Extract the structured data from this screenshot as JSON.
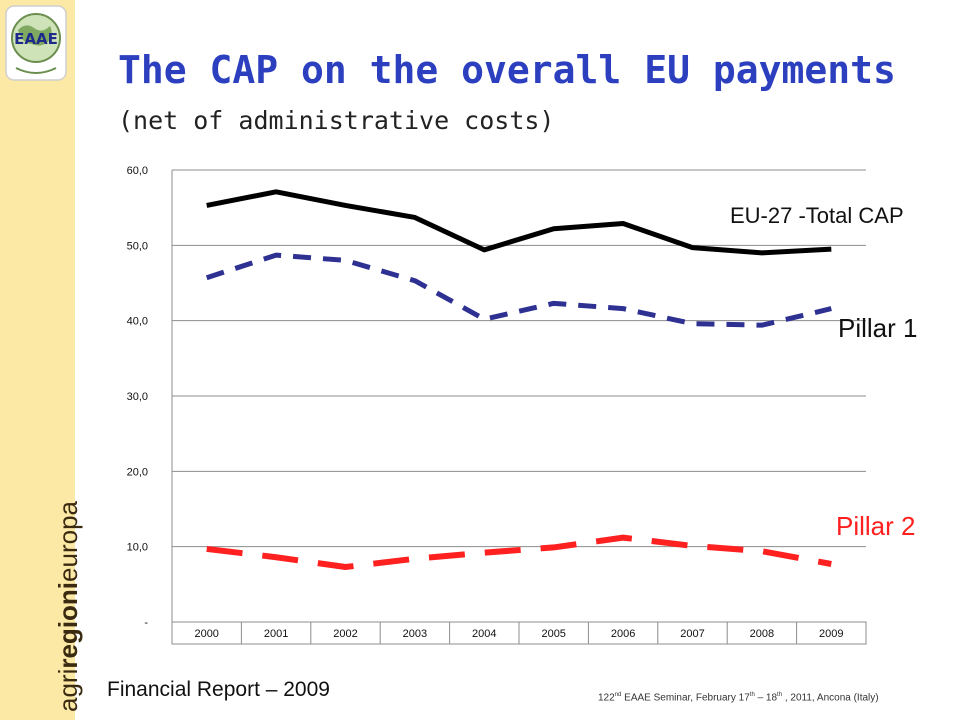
{
  "logo": {
    "text": "EAAE"
  },
  "sidebar": {
    "brand_prefix": "agri",
    "brand_bold": "regioni",
    "brand_suffix": "europa"
  },
  "header": {
    "title": "The CAP on the overall EU payments",
    "subtitle": "(net of administrative costs)"
  },
  "chart_data": {
    "type": "line",
    "categories": [
      "2000",
      "2001",
      "2002",
      "2003",
      "2004",
      "2005",
      "2006",
      "2007",
      "2008",
      "2009"
    ],
    "ylim": [
      0,
      60
    ],
    "yticks": [
      0,
      10,
      20,
      30,
      40,
      50,
      60
    ],
    "ytick_labels": [
      "-",
      "10,0",
      "20,0",
      "30,0",
      "40,0",
      "50,0",
      "60,0"
    ],
    "grid": true,
    "series": [
      {
        "name": "EU-27 -Total CAP",
        "values": [
          55.3,
          57.1,
          55.3,
          53.7,
          49.4,
          52.2,
          52.9,
          49.7,
          49.0,
          49.5
        ],
        "color": "#000000",
        "style": "solid"
      },
      {
        "name": "Pillar 1",
        "values": [
          45.7,
          48.7,
          48.0,
          45.3,
          40.2,
          42.3,
          41.6,
          39.6,
          39.4,
          41.6
        ],
        "color": "#2e3192",
        "style": "dashed"
      },
      {
        "name": "Pillar 2",
        "values": [
          9.7,
          8.6,
          7.3,
          8.4,
          9.2,
          9.9,
          11.2,
          10.1,
          9.4,
          7.7
        ],
        "color": "#ff2020",
        "style": "dashed"
      }
    ]
  },
  "source": "Financial Report – 2009",
  "footer": {
    "a": "122",
    "a_sup": "nd",
    "b": " EAAE Seminar, February 17",
    "b_sup": "th",
    "c": " – 18",
    "c_sup": "th",
    "d": " , 2011, Ancona (Italy)"
  }
}
